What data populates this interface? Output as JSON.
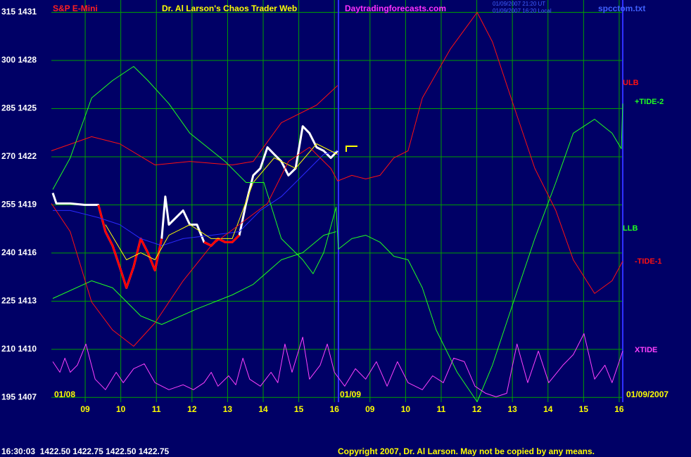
{
  "chart_data": {
    "type": "line",
    "instrument": "S&P E-Mini",
    "title": "Dr. Al Larson's Chaos Trader Web",
    "website": "Daytradingforecasts.com",
    "timestamps": [
      "01/09/2007 21:20 UT",
      "01/09/2007 16:20 Local"
    ],
    "file": "spcctom.txt",
    "date_labels": [
      "01/08",
      "01/09",
      "01/09/2007"
    ],
    "status": "16:30:03  1422.50 1422.75 1422.50 1422.75",
    "copyright": "Copyright 2007, Dr. Al Larson. May not be copied by any means.",
    "xlim": [
      0.05,
      16.1
    ],
    "xticks": [
      {
        "value": 1,
        "label": "09"
      },
      {
        "value": 2,
        "label": "10"
      },
      {
        "value": 3,
        "label": "11"
      },
      {
        "value": 4,
        "label": "12"
      },
      {
        "value": 5,
        "label": "13"
      },
      {
        "value": 6,
        "label": "14"
      },
      {
        "value": 7,
        "label": "15"
      },
      {
        "value": 8,
        "label": "16"
      },
      {
        "value": 9,
        "label": "09"
      },
      {
        "value": 10,
        "label": "10"
      },
      {
        "value": 11,
        "label": "11"
      },
      {
        "value": 12,
        "label": "12"
      },
      {
        "value": 13,
        "label": "13"
      },
      {
        "value": 14,
        "label": "14"
      },
      {
        "value": 15,
        "label": "15"
      },
      {
        "value": 16,
        "label": "16"
      }
    ],
    "ylim": [
      1406.75,
      1431.55
    ],
    "yticks": [
      {
        "value": 1431,
        "label": "315 1431"
      },
      {
        "value": 1428,
        "label": "300 1428"
      },
      {
        "value": 1425,
        "label": "285 1425"
      },
      {
        "value": 1422,
        "label": "270 1422"
      },
      {
        "value": 1419,
        "label": "255 1419"
      },
      {
        "value": 1416,
        "label": "240 1416"
      },
      {
        "value": 1413,
        "label": "225 1413"
      },
      {
        "value": 1410,
        "label": "210 1410"
      },
      {
        "value": 1407,
        "label": "195 1407"
      }
    ],
    "grid": true,
    "series": [
      {
        "color": "#ffffff",
        "x": [
          0.09,
          0.19,
          0.58,
          0.98,
          1.37,
          1.57,
          1.77,
          1.97,
          2.16,
          2.36,
          2.56,
          2.76,
          2.96,
          3.15,
          3.25,
          3.35,
          3.55,
          3.75,
          3.94,
          4.14,
          4.34,
          4.54,
          4.73,
          4.93,
          5.13,
          5.33,
          5.52,
          5.72,
          5.92,
          6.12,
          6.31,
          6.51,
          6.71,
          6.91,
          7.11,
          7.3,
          7.5,
          7.7,
          7.9,
          8.09
        ],
        "values": [
          1419.74,
          1419.09,
          1419.09,
          1419.0,
          1419.0,
          1417.33,
          1416.46,
          1415.14,
          1413.83,
          1415.14,
          1416.9,
          1416.02,
          1414.92,
          1416.9,
          1419.52,
          1417.77,
          1418.21,
          1418.65,
          1417.77,
          1417.77,
          1416.68,
          1416.46,
          1416.9,
          1416.68,
          1416.68,
          1417.11,
          1419.09,
          1420.84,
          1421.28,
          1422.59,
          1422.15,
          1421.71,
          1420.84,
          1421.28,
          1423.9,
          1423.47,
          1422.59,
          1422.37,
          1421.93,
          1422.37
        ]
      },
      {
        "color": "#ff0000",
        "x": [
          1.37,
          1.57,
          1.77,
          1.97,
          2.16,
          2.36,
          2.56,
          2.76,
          2.96,
          3.15,
          3.55,
          4.34,
          4.54,
          4.73,
          4.93,
          5.13,
          5.33
        ],
        "values": [
          1419.0,
          1417.33,
          1416.46,
          1415.14,
          1413.83,
          1415.14,
          1416.9,
          1416.02,
          1414.92,
          1416.9,
          null,
          1416.68,
          1416.46,
          1416.9,
          1416.68,
          1416.68,
          1417.11
        ]
      },
      {
        "color": "#2a2aff",
        "x": [
          0.09,
          0.58,
          1.37,
          1.97,
          2.56,
          3.15,
          3.75,
          4.54,
          5.33,
          5.92,
          6.51,
          7.11,
          7.7,
          8.09
        ],
        "values": [
          1418.65,
          1418.65,
          1418.21,
          1417.77,
          1416.9,
          1416.46,
          1416.9,
          1417.11,
          1417.33,
          1418.65,
          1419.52,
          1420.84,
          1422.15,
          1422.37
        ]
      },
      {
        "color": "#ffff00",
        "x": [
          1.57,
          2.16,
          2.56,
          2.96,
          3.35,
          3.94,
          4.54,
          5.13,
          5.72,
          6.31,
          6.91,
          7.5,
          8.09
        ],
        "values": [
          1417.77,
          1415.58,
          1416.02,
          1415.58,
          1417.11,
          1417.77,
          1416.9,
          1416.9,
          1420.4,
          1421.93,
          1421.28,
          1422.81,
          1422.15
        ]
      },
      {
        "name": "ULB",
        "color": "#ff1010",
        "x": [
          0.05,
          1.18,
          1.97,
          2.96,
          3.94,
          5.13,
          5.72,
          6.51,
          7.5,
          8.09
        ],
        "values": [
          1422.37,
          1423.25,
          1422.81,
          1421.49,
          1421.71,
          1421.49,
          1421.71,
          1424.12,
          1425.22,
          1426.44
        ]
      },
      {
        "name": "+TIDE-2",
        "color": "#20ff20",
        "x": [
          0.09,
          0.58,
          1.18,
          1.77,
          2.36,
          2.76,
          3.35,
          3.94,
          4.93,
          5.52,
          6.02,
          6.51,
          7.11,
          7.4,
          7.7,
          8.05,
          8.11,
          8.49,
          8.88,
          9.28,
          9.67,
          10.07,
          10.47,
          10.86,
          11.45,
          12.01,
          12.44,
          13.03,
          13.63,
          14.22,
          14.71,
          15.31,
          15.8,
          16.06,
          16.1
        ],
        "values": [
          1419.96,
          1421.93,
          1425.66,
          1426.75,
          1427.63,
          1426.75,
          1425.31,
          1423.47,
          1421.71,
          1420.4,
          1420.4,
          1416.9,
          1415.58,
          1414.71,
          1416.02,
          1418.87,
          1416.24,
          1416.9,
          1417.11,
          1416.68,
          1415.8,
          1415.58,
          1413.83,
          1411.2,
          1408.57,
          1406.73,
          1409.01,
          1412.95,
          1416.9,
          1420.4,
          1423.47,
          1424.34,
          1423.47,
          1422.5,
          1425.31
        ]
      },
      {
        "name": "LLB",
        "color": "#20ff20",
        "x": [
          0.09,
          1.18,
          1.77,
          2.56,
          3.15,
          4.14,
          5.13,
          5.72,
          6.51,
          7.11,
          7.7,
          8.05
        ],
        "values": [
          1413.17,
          1414.27,
          1413.83,
          1412.08,
          1411.55,
          1412.52,
          1413.39,
          1414.05,
          1415.58,
          1416.02,
          1417.11,
          1417.33
        ]
      },
      {
        "name": "-TIDE-1",
        "color": "#ff1010",
        "x": [
          0.05,
          0.58,
          1.18,
          1.77,
          2.36,
          2.96,
          3.75,
          4.54,
          5.33,
          6.12,
          6.71,
          7.3,
          7.9,
          8.09,
          8.49,
          8.88,
          9.28,
          9.67,
          10.07,
          10.47,
          11.26,
          12.01,
          12.44,
          13.03,
          13.63,
          14.22,
          14.71,
          15.31,
          15.8,
          16.1
        ],
        "values": [
          1419.09,
          1417.33,
          1412.95,
          1411.2,
          1410.19,
          1411.64,
          1414.27,
          1416.46,
          1417.77,
          1419.09,
          1421.71,
          1422.59,
          1421.28,
          1420.49,
          1420.84,
          1420.62,
          1420.84,
          1421.93,
          1422.37,
          1425.66,
          1428.72,
          1431.0,
          1429.16,
          1425.22,
          1421.28,
          1418.65,
          1415.58,
          1413.48,
          1414.27,
          1415.49
        ]
      },
      {
        "name": "XTIDE",
        "color": "#ff40ff",
        "x": [
          0.09,
          0.29,
          0.43,
          0.58,
          0.78,
          1.02,
          1.28,
          1.57,
          1.87,
          2.07,
          2.36,
          2.66,
          2.96,
          3.35,
          3.75,
          4.04,
          4.34,
          4.54,
          4.73,
          5.03,
          5.23,
          5.43,
          5.62,
          5.92,
          6.22,
          6.41,
          6.61,
          6.81,
          7.11,
          7.3,
          7.6,
          7.8,
          8.0,
          8.29,
          8.59,
          8.88,
          9.18,
          9.48,
          9.77,
          10.07,
          10.47,
          10.76,
          11.06,
          11.35,
          11.65,
          11.95,
          12.25,
          12.54,
          12.84,
          13.13,
          13.43,
          13.73,
          14.02,
          14.42,
          14.71,
          15.01,
          15.31,
          15.6,
          15.8,
          16.1
        ],
        "values": [
          1409.23,
          1408.57,
          1409.45,
          1408.57,
          1409.01,
          1410.33,
          1408.14,
          1407.48,
          1408.57,
          1407.92,
          1408.79,
          1409.1,
          1407.92,
          1407.48,
          1407.79,
          1407.48,
          1407.92,
          1408.57,
          1407.7,
          1408.35,
          1407.79,
          1409.45,
          1408.14,
          1407.7,
          1408.57,
          1407.92,
          1410.33,
          1408.57,
          1410.76,
          1408.14,
          1409.01,
          1410.33,
          1408.57,
          1407.7,
          1408.79,
          1408.14,
          1409.23,
          1407.7,
          1409.23,
          1407.92,
          1407.48,
          1408.35,
          1407.92,
          1409.45,
          1409.23,
          1407.7,
          1407.26,
          1407.04,
          1407.26,
          1410.33,
          1407.92,
          1409.89,
          1407.92,
          1409.01,
          1409.67,
          1410.98,
          1408.14,
          1409.01,
          1407.92,
          1409.89
        ]
      }
    ]
  }
}
